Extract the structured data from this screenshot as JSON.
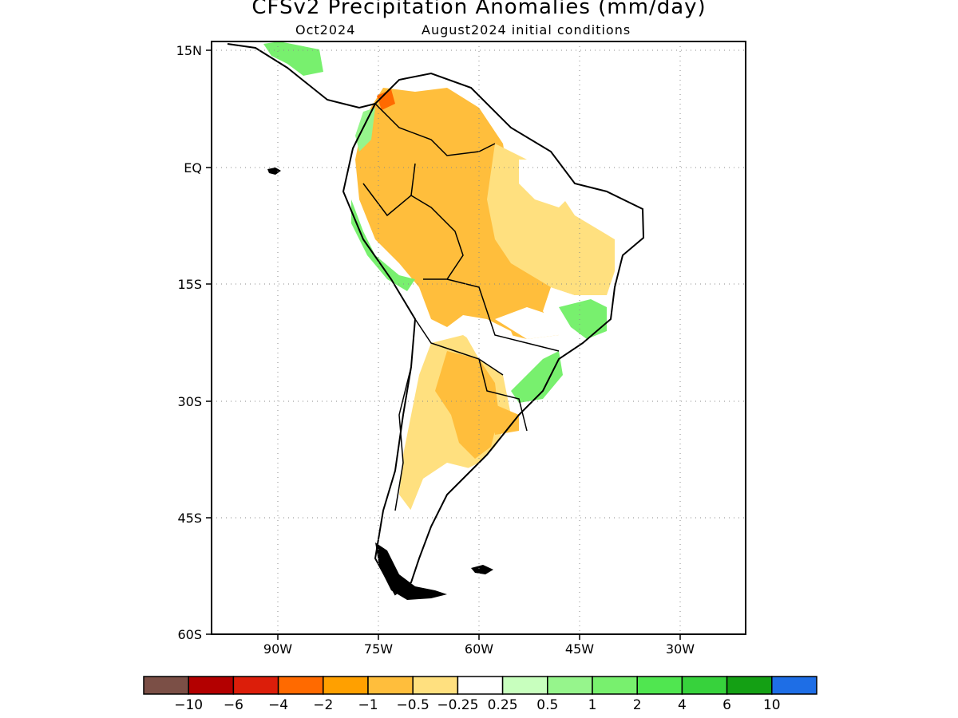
{
  "title": "CFSv2 Precipitation Anomalies (mm/day)",
  "subtitle_left": "Oct2024",
  "subtitle_right": "August2024 initial conditions",
  "lat_labels": [
    "15N",
    "EQ",
    "15S",
    "30S",
    "45S",
    "60S"
  ],
  "lon_labels": [
    "90W",
    "75W",
    "60W",
    "45W",
    "30W"
  ],
  "colorbar": {
    "labels": [
      "-10",
      "-6",
      "-4",
      "-2",
      "-1",
      "-0.5",
      "-0.25",
      "0.25",
      "0.5",
      "1",
      "2",
      "4",
      "6",
      "10"
    ],
    "colors": [
      "#7b4f46",
      "#b30000",
      "#dc1e0a",
      "#ff6a00",
      "#ffa000",
      "#ffbe3c",
      "#ffe07f",
      "#ffffff",
      "#c8ffbe",
      "#96f58c",
      "#78f06e",
      "#50e650",
      "#37d23c",
      "#14a014",
      "#1e6ee6"
    ]
  },
  "map": {
    "extent": {
      "lon_min": -100,
      "lon_max": -20,
      "lat_min": -60,
      "lat_max": 15
    },
    "grid": "dotted",
    "features": [
      "coastlines",
      "country-borders"
    ]
  }
}
